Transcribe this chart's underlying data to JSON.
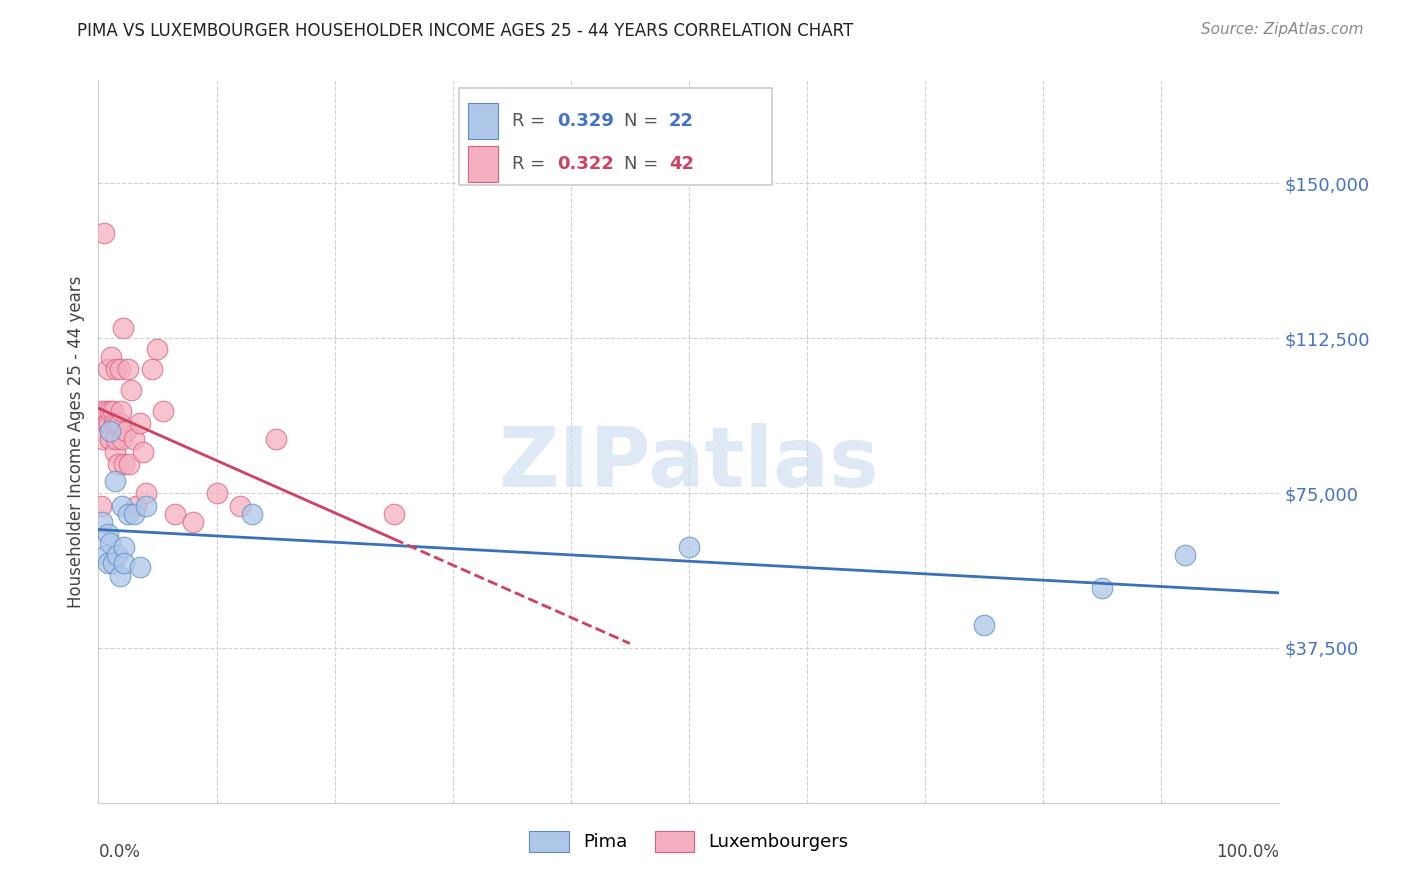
{
  "title": "PIMA VS LUXEMBOURGER HOUSEHOLDER INCOME AGES 25 - 44 YEARS CORRELATION CHART",
  "source": "Source: ZipAtlas.com",
  "ylabel": "Householder Income Ages 25 - 44 years",
  "ytick_values": [
    37500,
    75000,
    112500,
    150000
  ],
  "ymin": 0,
  "ymax": 175000,
  "xmin": 0.0,
  "xmax": 1.0,
  "pima_R": 0.329,
  "pima_N": 22,
  "lux_R": 0.322,
  "lux_N": 42,
  "pima_color": "#aec6e8",
  "pima_edge_color": "#5b8ec4",
  "pima_line_color": "#3a72b8",
  "lux_color": "#f4afc0",
  "lux_edge_color": "#d96080",
  "lux_line_color": "#d04060",
  "pima_x": [
    0.003,
    0.006,
    0.008,
    0.008,
    0.01,
    0.01,
    0.012,
    0.014,
    0.016,
    0.018,
    0.02,
    0.022,
    0.022,
    0.025,
    0.03,
    0.035,
    0.04,
    0.13,
    0.5,
    0.75,
    0.85,
    0.92
  ],
  "pima_y": [
    68000,
    60000,
    58000,
    65000,
    63000,
    90000,
    58000,
    78000,
    60000,
    55000,
    72000,
    62000,
    58000,
    70000,
    70000,
    57000,
    72000,
    70000,
    62000,
    43000,
    52000,
    60000
  ],
  "lux_x": [
    0.002,
    0.003,
    0.004,
    0.005,
    0.006,
    0.007,
    0.008,
    0.009,
    0.01,
    0.01,
    0.011,
    0.012,
    0.013,
    0.014,
    0.015,
    0.015,
    0.016,
    0.017,
    0.018,
    0.018,
    0.019,
    0.02,
    0.021,
    0.022,
    0.023,
    0.025,
    0.026,
    0.028,
    0.03,
    0.032,
    0.035,
    0.038,
    0.04,
    0.045,
    0.05,
    0.055,
    0.065,
    0.08,
    0.1,
    0.12,
    0.15,
    0.25
  ],
  "lux_y": [
    72000,
    95000,
    88000,
    138000,
    95000,
    92000,
    105000,
    92000,
    95000,
    88000,
    108000,
    95000,
    92000,
    85000,
    105000,
    88000,
    92000,
    82000,
    105000,
    92000,
    95000,
    88000,
    115000,
    82000,
    90000,
    105000,
    82000,
    100000,
    88000,
    72000,
    92000,
    85000,
    75000,
    105000,
    110000,
    95000,
    70000,
    68000,
    75000,
    72000,
    88000,
    70000
  ],
  "watermark_text": "ZIPatlas",
  "watermark_color": "#c5d8f0",
  "title_fontsize": 12,
  "source_fontsize": 11,
  "ytick_fontsize": 13,
  "ylabel_fontsize": 12,
  "legend_fontsize": 13
}
